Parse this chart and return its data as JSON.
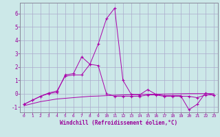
{
  "bg_color": "#cce8e8",
  "grid_color": "#aaaacc",
  "line_color": "#aa00aa",
  "spine_color": "#888899",
  "xlabel": "Windchill (Refroidissement éolien,°C)",
  "xlim": [
    -0.5,
    23.5
  ],
  "ylim": [
    -1.4,
    6.8
  ],
  "yticks": [
    -1,
    0,
    1,
    2,
    3,
    4,
    5,
    6
  ],
  "xticks": [
    0,
    1,
    2,
    3,
    4,
    5,
    6,
    7,
    8,
    9,
    10,
    11,
    12,
    13,
    14,
    15,
    16,
    17,
    18,
    19,
    20,
    21,
    22,
    23
  ],
  "line1_x": [
    0,
    1,
    2,
    3,
    4,
    5,
    6,
    7,
    8,
    9,
    10,
    11,
    12,
    13,
    14,
    15,
    16,
    17,
    18,
    19,
    20,
    21,
    22,
    23
  ],
  "line1_y": [
    -0.8,
    -0.5,
    -0.2,
    0.0,
    0.1,
    1.4,
    1.5,
    2.75,
    2.2,
    3.7,
    5.6,
    6.4,
    1.0,
    -0.05,
    -0.1,
    0.3,
    -0.05,
    -0.15,
    -0.15,
    -0.15,
    -1.2,
    -0.8,
    0.05,
    -0.1
  ],
  "line2_x": [
    0,
    1,
    2,
    3,
    4,
    5,
    6,
    7,
    8,
    9,
    10,
    11,
    12,
    13,
    14,
    15,
    16,
    17,
    18,
    19,
    20,
    21,
    22,
    23
  ],
  "line2_y": [
    -0.8,
    -0.5,
    -0.2,
    0.05,
    0.2,
    1.3,
    1.4,
    1.4,
    2.2,
    2.1,
    0.0,
    -0.2,
    -0.2,
    -0.2,
    -0.2,
    -0.1,
    -0.1,
    -0.2,
    -0.2,
    -0.2,
    -0.2,
    -0.3,
    -0.1,
    -0.1
  ],
  "line3_x": [
    0,
    1,
    2,
    3,
    4,
    5,
    6,
    7,
    8,
    9,
    10,
    11,
    12,
    13,
    14,
    15,
    16,
    17,
    18,
    19,
    20,
    21,
    22,
    23
  ],
  "line3_y": [
    -0.9,
    -0.75,
    -0.6,
    -0.5,
    -0.4,
    -0.35,
    -0.3,
    -0.25,
    -0.2,
    -0.18,
    -0.15,
    -0.12,
    -0.1,
    -0.08,
    -0.06,
    -0.05,
    -0.04,
    -0.03,
    -0.02,
    -0.01,
    0.0,
    0.0,
    0.0,
    0.0
  ]
}
